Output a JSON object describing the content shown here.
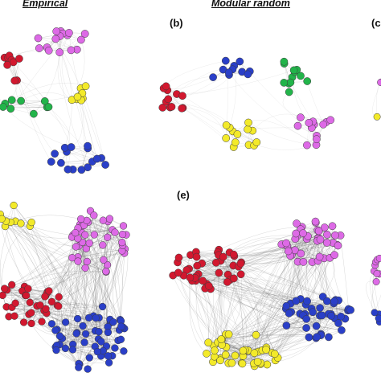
{
  "header": {
    "col_empirical": "Empirical",
    "col_modular_random": "Modular random"
  },
  "panels": {
    "b": "(b)",
    "c_partial": "(c",
    "e": "(e)"
  },
  "colors": {
    "red": "#d2182f",
    "magenta": "#dd6ae6",
    "yellow": "#f3ea2a",
    "green": "#22b44a",
    "blue": "#2a3fc8",
    "edge": "#555555",
    "node_stroke": "#3a3a3a"
  }
}
